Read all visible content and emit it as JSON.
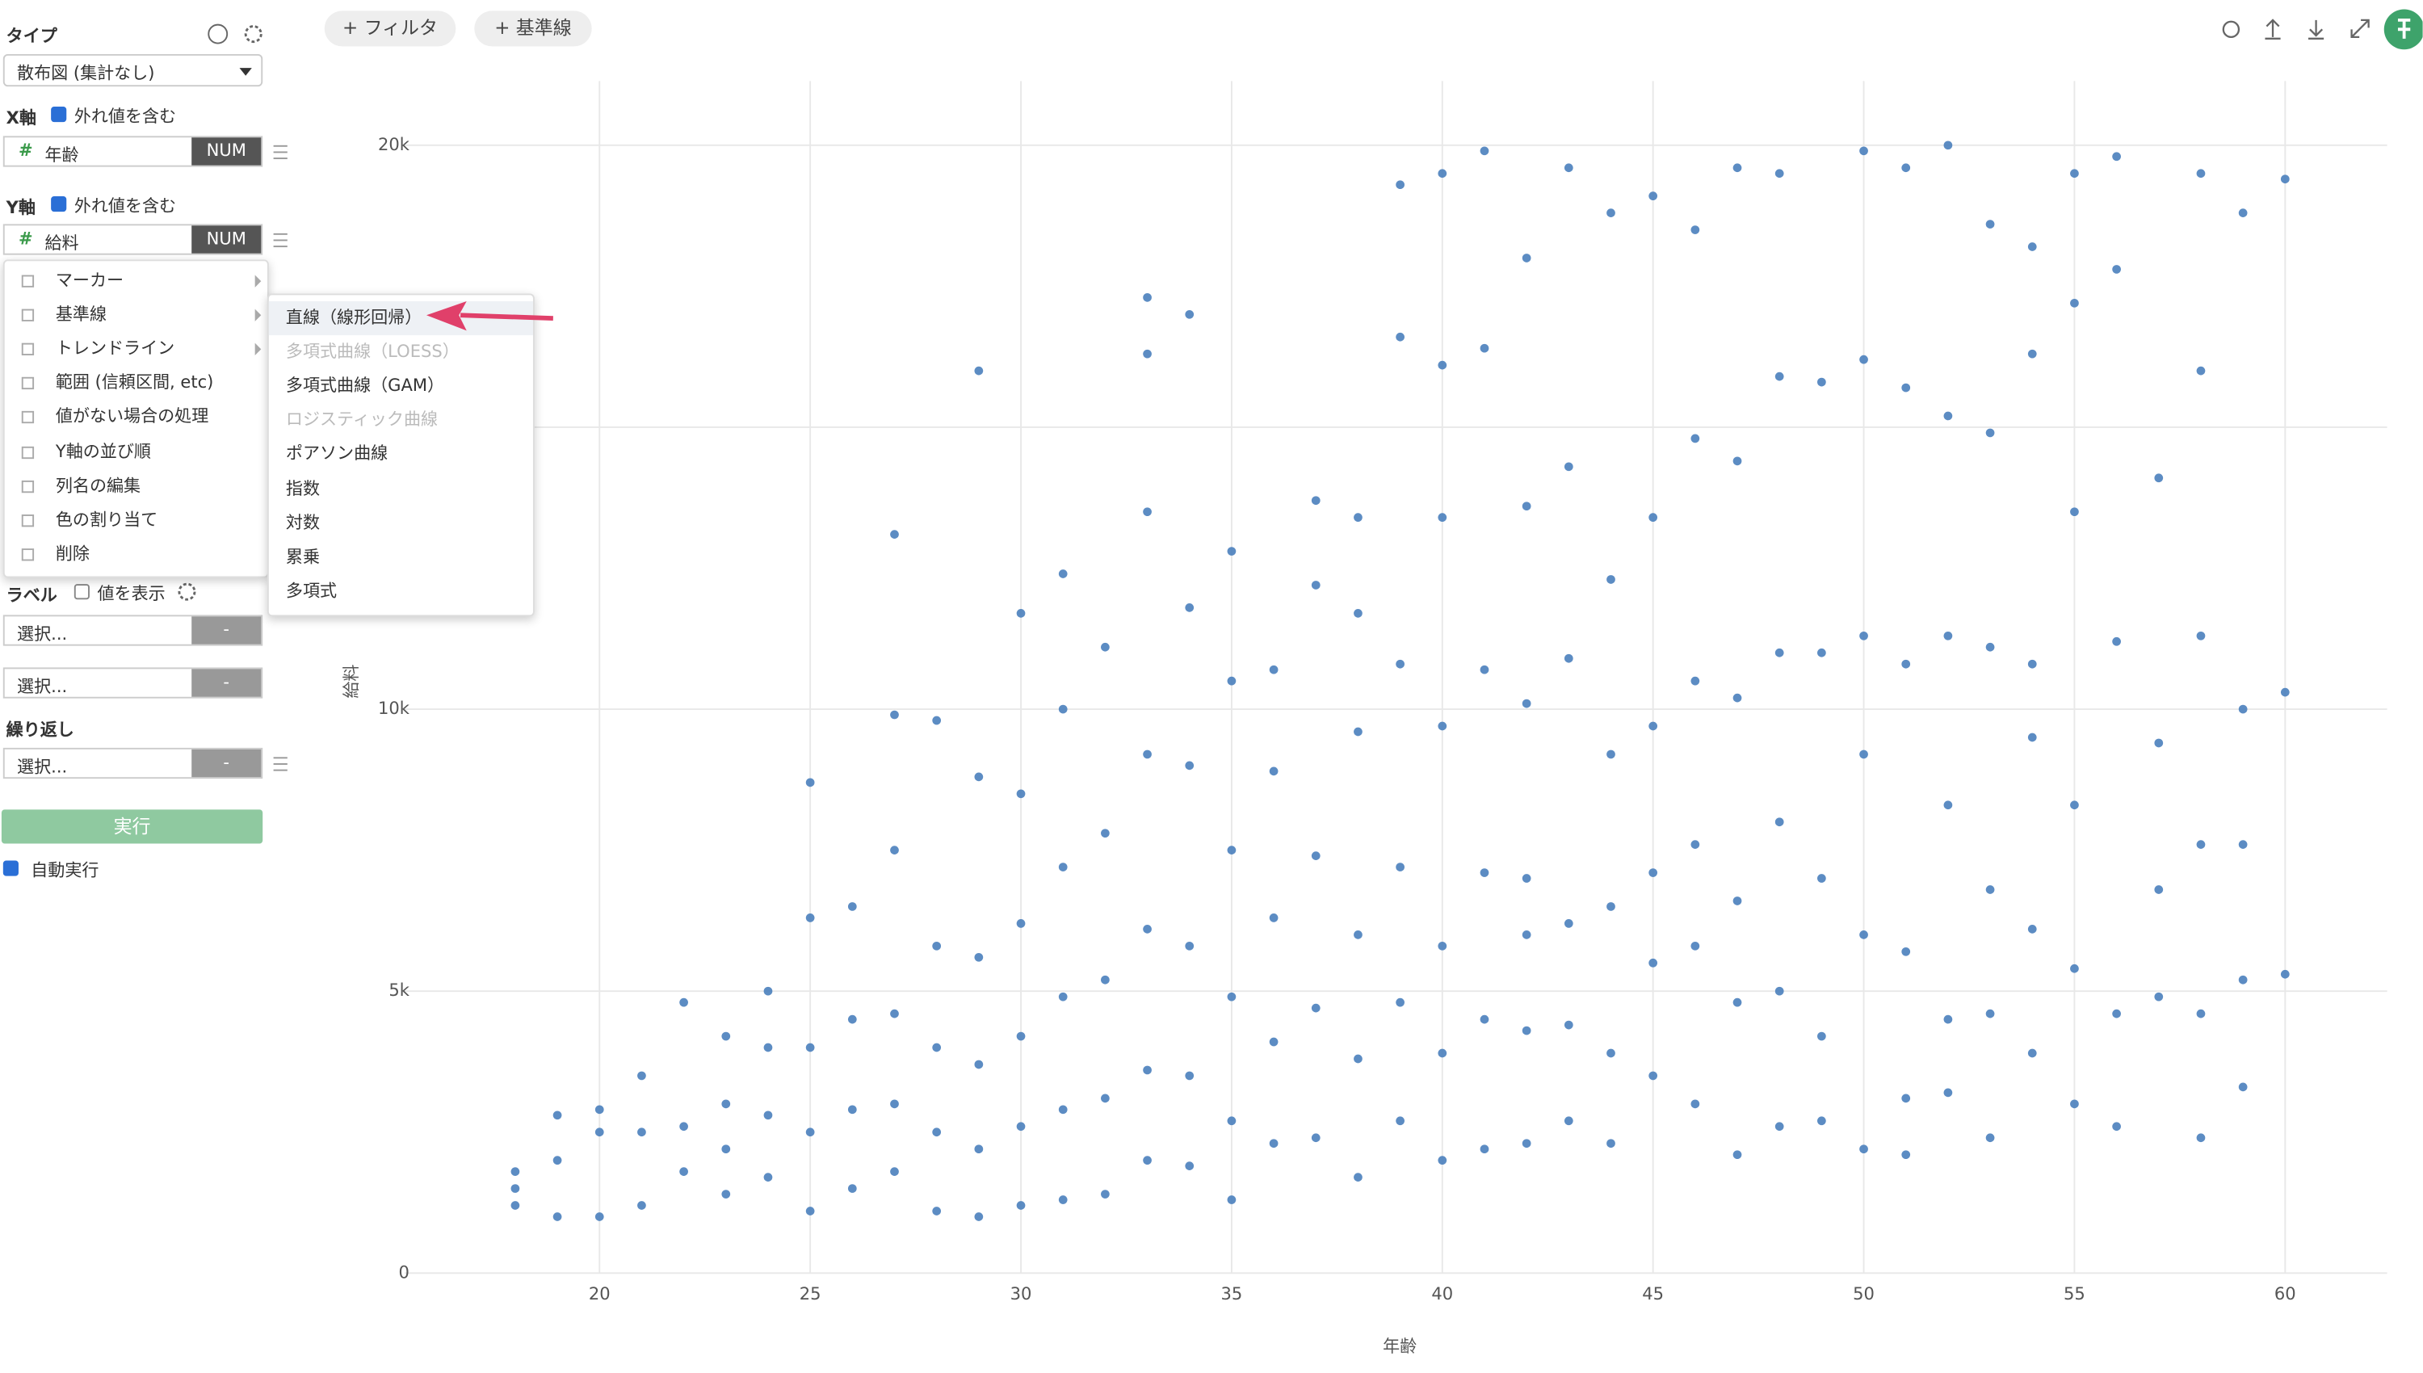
{
  "toolbar": {
    "filter_button": "+ フィルタ",
    "reference_button": "+ 基準線"
  },
  "sidebar": {
    "type_label": "タイプ",
    "chart_type": "散布図 (集計なし)",
    "x_axis": {
      "label": "X軸",
      "include_outliers": "外れ値を含む",
      "include_outliers_checked": true,
      "column": "年齢",
      "column_type": "NUM"
    },
    "y_axis": {
      "label": "Y軸",
      "include_outliers": "外れ値を含む",
      "include_outliers_checked": true,
      "column": "給料",
      "column_type": "NUM"
    },
    "label_section": {
      "label": "ラベル",
      "show_values": "値を表示",
      "show_values_checked": false,
      "select_1": "選択...",
      "select_1_type": "-",
      "select_2": "選択...",
      "select_2_type": "-"
    },
    "repeat": {
      "label": "繰り返し",
      "select": "選択...",
      "select_type": "-"
    },
    "run_button": "実行",
    "auto_run": "自動実行",
    "auto_run_checked": true
  },
  "context_menu": {
    "items": [
      {
        "label": "マーカー",
        "submenu": true
      },
      {
        "label": "基準線",
        "submenu": true
      },
      {
        "label": "トレンドライン",
        "submenu": true
      },
      {
        "label": "範囲 (信頼区間, etc)",
        "submenu": false
      },
      {
        "label": "値がない場合の処理",
        "submenu": false
      },
      {
        "label": "Y軸の並び順",
        "submenu": false
      },
      {
        "label": "列名の編集",
        "submenu": false
      },
      {
        "label": "色の割り当て",
        "submenu": false
      },
      {
        "label": "削除",
        "submenu": false
      }
    ]
  },
  "submenu": {
    "items": [
      {
        "label": "直線（線形回帰）",
        "enabled": true,
        "highlighted": true
      },
      {
        "label": "多項式曲線（LOESS）",
        "enabled": false,
        "highlighted": false
      },
      {
        "label": "多項式曲線（GAM）",
        "enabled": true,
        "highlighted": false
      },
      {
        "label": "ロジスティック曲線",
        "enabled": false,
        "highlighted": false
      },
      {
        "label": "ポアソン曲線",
        "enabled": true,
        "highlighted": false
      },
      {
        "label": "指数",
        "enabled": true,
        "highlighted": false
      },
      {
        "label": "対数",
        "enabled": true,
        "highlighted": false
      },
      {
        "label": "累乗",
        "enabled": true,
        "highlighted": false
      },
      {
        "label": "多項式",
        "enabled": true,
        "highlighted": false
      }
    ]
  },
  "chart_data": {
    "type": "scatter",
    "x_label": "年齢",
    "y_label": "給料",
    "color": "#4a80bd",
    "grid": true,
    "xlim": [
      15.38,
      62.42
    ],
    "ylim": [
      0,
      21000
    ],
    "xticks": [
      20,
      25,
      30,
      35,
      40,
      45,
      50,
      55,
      60
    ],
    "yticks": [
      0,
      {
        "value": 5000,
        "label": "5k"
      },
      {
        "value": 10000,
        "label": "10k"
      },
      {
        "value": 15000,
        "label": "15k"
      },
      {
        "value": 20000,
        "label": "20k"
      }
    ],
    "x": [
      18,
      18,
      18,
      19,
      19,
      19,
      20,
      20,
      20,
      21,
      21,
      21,
      22,
      22,
      22,
      23,
      23,
      23,
      23,
      24,
      24,
      24,
      24,
      25,
      25,
      25,
      25,
      25,
      26,
      26,
      26,
      26,
      27,
      27,
      27,
      27,
      27,
      27,
      28,
      28,
      28,
      28,
      28,
      29,
      29,
      29,
      29,
      29,
      29,
      30,
      30,
      30,
      30,
      30,
      30,
      31,
      31,
      31,
      31,
      31,
      31,
      32,
      32,
      32,
      32,
      32,
      33,
      33,
      33,
      33,
      33,
      33,
      33,
      34,
      34,
      34,
      34,
      34,
      34,
      35,
      35,
      35,
      35,
      35,
      35,
      36,
      36,
      36,
      36,
      36,
      37,
      37,
      37,
      37,
      37,
      38,
      38,
      38,
      38,
      38,
      38,
      39,
      39,
      39,
      39,
      39,
      39,
      40,
      40,
      40,
      40,
      40,
      40,
      40,
      41,
      41,
      41,
      41,
      41,
      41,
      42,
      42,
      42,
      42,
      42,
      42,
      42,
      43,
      43,
      43,
      43,
      43,
      43,
      44,
      44,
      44,
      44,
      44,
      44,
      45,
      45,
      45,
      45,
      45,
      45,
      46,
      46,
      46,
      46,
      46,
      46,
      47,
      47,
      47,
      47,
      47,
      47,
      48,
      48,
      48,
      48,
      48,
      48,
      49,
      49,
      49,
      49,
      49,
      50,
      50,
      50,
      50,
      50,
      50,
      51,
      51,
      51,
      51,
      51,
      51,
      52,
      52,
      52,
      52,
      52,
      52,
      53,
      53,
      53,
      53,
      53,
      53,
      54,
      54,
      54,
      54,
      54,
      54,
      55,
      55,
      55,
      55,
      55,
      55,
      56,
      56,
      56,
      56,
      56,
      57,
      57,
      57,
      57,
      58,
      58,
      58,
      58,
      58,
      58,
      59,
      59,
      59,
      59,
      59,
      60,
      60,
      60
    ],
    "values": [
      1200,
      1500,
      1800,
      1000,
      2000,
      2800,
      1000,
      2500,
      2900,
      1200,
      2500,
      3500,
      1800,
      2600,
      4800,
      1400,
      2200,
      3000,
      4200,
      1700,
      2800,
      4000,
      5000,
      1100,
      2500,
      4000,
      6300,
      8700,
      1500,
      2900,
      4500,
      6500,
      1800,
      3000,
      4600,
      7500,
      9900,
      13100,
      1100,
      2500,
      4000,
      5800,
      9800,
      1000,
      2200,
      3700,
      5600,
      8800,
      16000,
      1200,
      2600,
      4200,
      6200,
      8500,
      11700,
      1300,
      2900,
      4900,
      7200,
      10000,
      12400,
      1400,
      3100,
      5200,
      7800,
      11100,
      2000,
      3600,
      6100,
      9200,
      13500,
      16300,
      17300,
      1900,
      3500,
      5800,
      9000,
      11800,
      17000,
      1300,
      2700,
      4900,
      7500,
      10500,
      12800,
      2300,
      4100,
      6300,
      8900,
      10700,
      2400,
      4700,
      7400,
      12200,
      13700,
      1700,
      3800,
      6000,
      9600,
      11700,
      13400,
      2700,
      4800,
      7200,
      10800,
      16600,
      19300,
      2000,
      3900,
      5800,
      9700,
      13400,
      16100,
      19500,
      2200,
      4500,
      7100,
      10700,
      16400,
      19900,
      2300,
      4300,
      6000,
      7000,
      10100,
      13600,
      18000,
      2700,
      4400,
      6200,
      10900,
      14300,
      19600,
      2300,
      3900,
      6500,
      9200,
      12300,
      18800,
      3500,
      5500,
      7100,
      9700,
      13400,
      19100,
      3000,
      5800,
      7600,
      10500,
      14800,
      18500,
      2100,
      4800,
      6600,
      10200,
      14400,
      19600,
      2600,
      5000,
      8000,
      11000,
      15900,
      19500,
      2700,
      4200,
      7000,
      11000,
      15800,
      2200,
      6000,
      9200,
      11300,
      16200,
      19900,
      2100,
      3100,
      5700,
      10800,
      15700,
      19600,
      3200,
      4500,
      8300,
      11300,
      15200,
      20000,
      2400,
      4600,
      6800,
      11100,
      14900,
      18600,
      3900,
      6100,
      9500,
      10800,
      16300,
      18200,
      3000,
      5400,
      8300,
      13500,
      17200,
      19500,
      2600,
      4600,
      11200,
      17800,
      19800,
      4900,
      6800,
      9400,
      14100,
      2400,
      4600,
      7600,
      11300,
      16000,
      19500,
      3300,
      5200,
      7600,
      10000,
      18800,
      5300,
      10300,
      19400
    ]
  }
}
